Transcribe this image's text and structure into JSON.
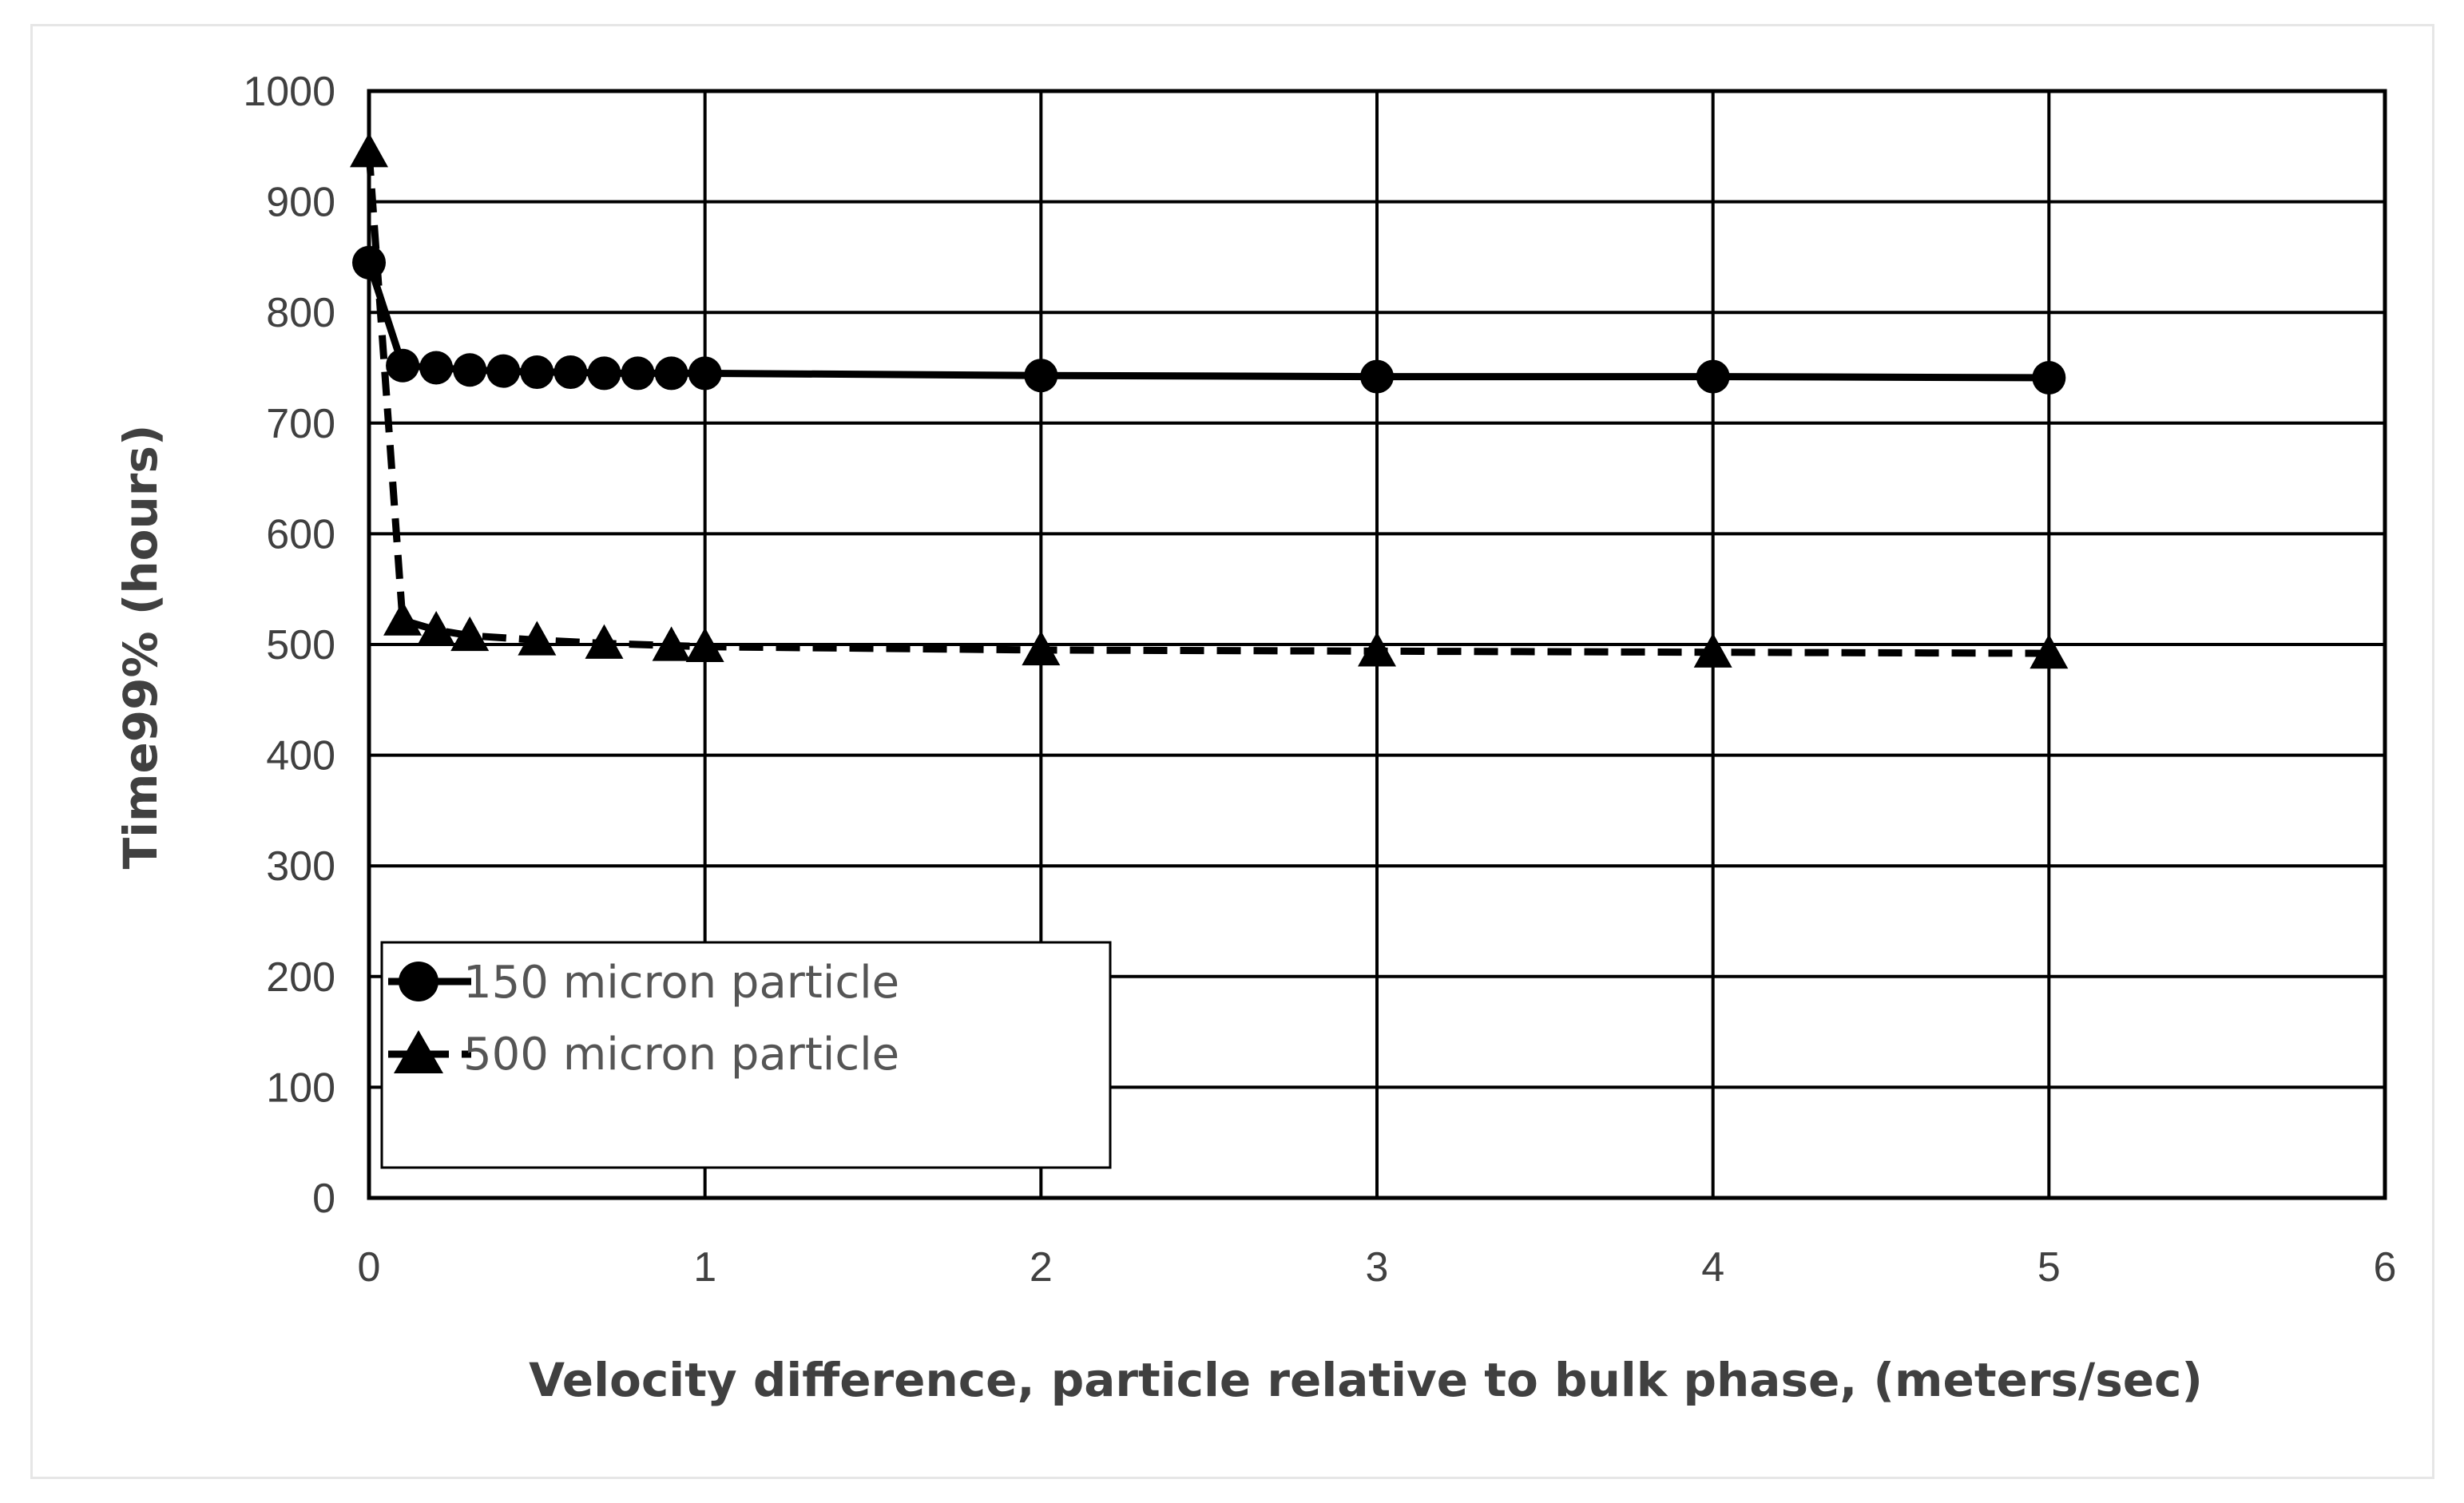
{
  "chart_data": {
    "type": "line",
    "title": "",
    "xlabel": "Velocity difference, particle relative to bulk phase, (meters/sec)",
    "ylabel": "Time99% (hours)",
    "xlim": [
      0,
      6
    ],
    "ylim": [
      0,
      1000
    ],
    "x_ticks": [
      "0",
      "1",
      "2",
      "3",
      "4",
      "5",
      "6"
    ],
    "y_ticks": [
      "0",
      "100",
      "200",
      "300",
      "400",
      "500",
      "600",
      "700",
      "800",
      "900",
      "1000"
    ],
    "grid": true,
    "legend_position": "bottom-left",
    "series": [
      {
        "name": "150 micron particle",
        "marker": "circle",
        "line_style": "solid",
        "x": [
          0,
          0.1,
          0.2,
          0.3,
          0.4,
          0.5,
          0.6,
          0.7,
          0.8,
          0.9,
          1,
          2,
          3,
          4,
          5
        ],
        "y": [
          845,
          752,
          750,
          748,
          747,
          746,
          746,
          745,
          745,
          745,
          745,
          743,
          742,
          742,
          741
        ]
      },
      {
        "name": "500 micron particle",
        "marker": "triangle",
        "line_style": "dashed",
        "x": [
          0,
          0.1,
          0.2,
          0.3,
          0.5,
          0.7,
          0.9,
          1,
          2,
          3,
          4,
          5
        ],
        "y": [
          945,
          522,
          513,
          508,
          504,
          501,
          499,
          498,
          495,
          494,
          493,
          492
        ]
      }
    ]
  }
}
